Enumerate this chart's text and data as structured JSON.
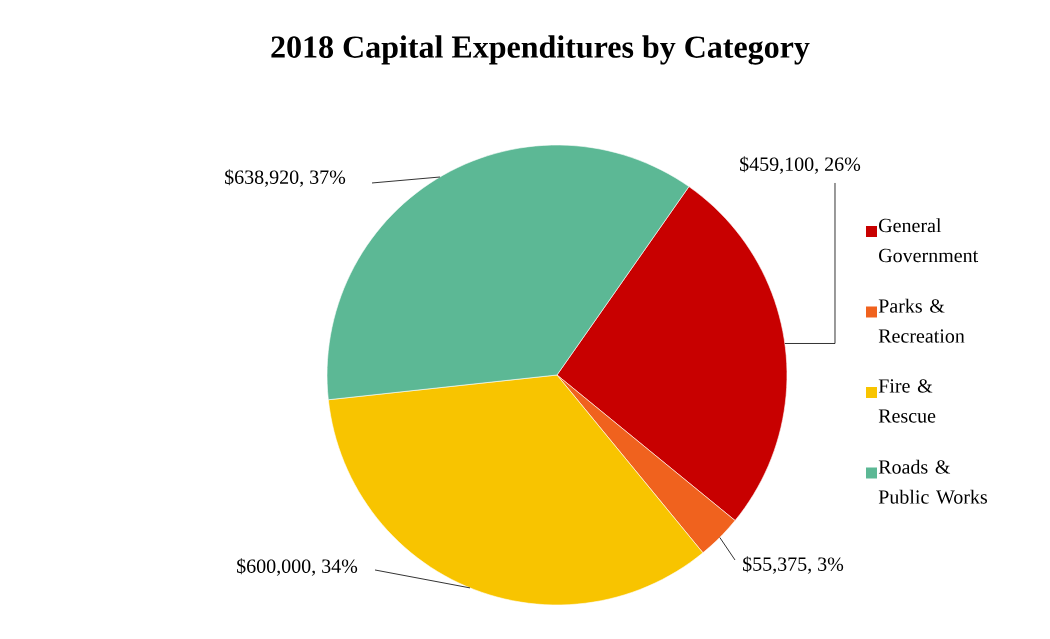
{
  "chart_data": {
    "type": "pie",
    "title": "2018 Capital Expenditures by Category",
    "categories": [
      "General Government",
      "Parks & Recreation",
      "Fire & Rescue",
      "Roads & Public Works"
    ],
    "values": [
      459100,
      55375,
      600000,
      638920
    ],
    "colors": [
      "#c80000",
      "#f0621e",
      "#f8c400",
      "#5cb895"
    ],
    "value_labels": [
      "$459,100, 26%",
      "$55,375, 3%",
      "$600,000, 34%",
      "$638,920, 37%"
    ],
    "legend": "right"
  }
}
